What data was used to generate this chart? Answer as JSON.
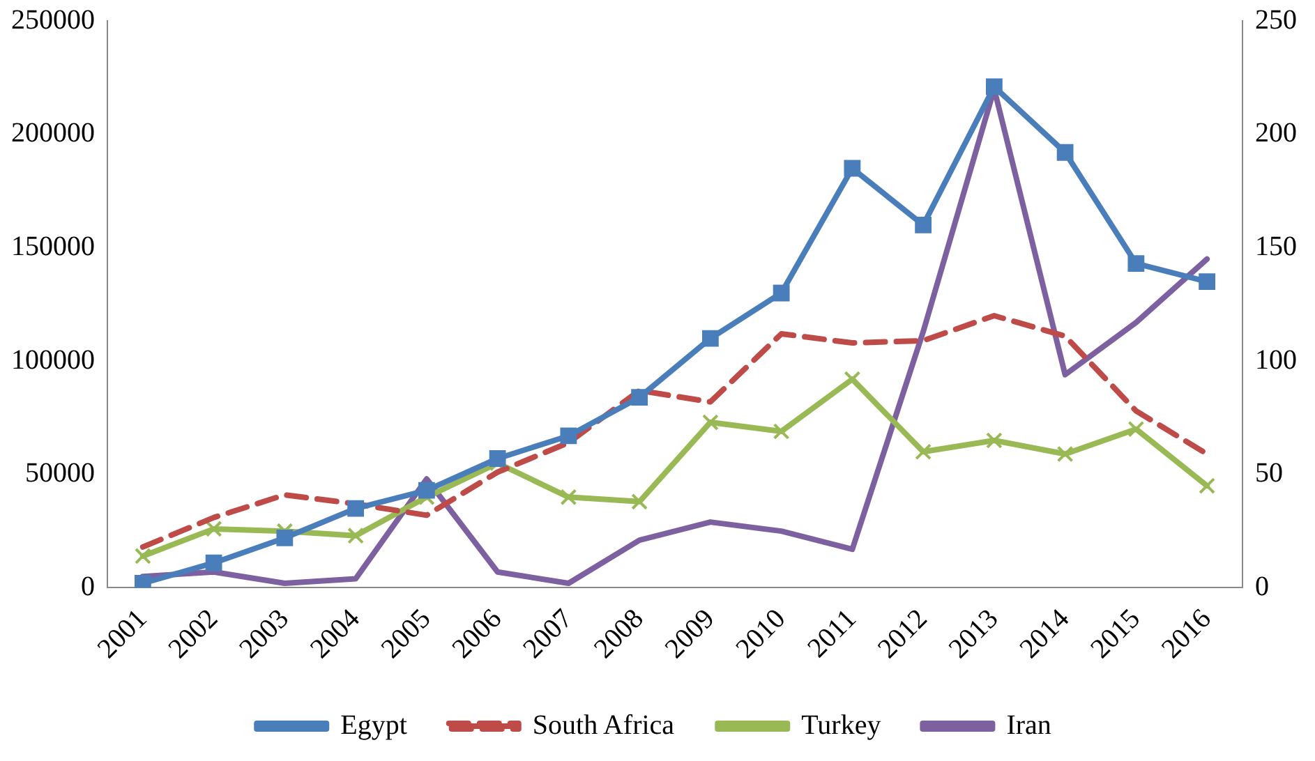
{
  "chart_data": {
    "type": "line",
    "categories": [
      "2001",
      "2002",
      "2003",
      "2004",
      "2005",
      "2006",
      "2007",
      "2008",
      "2009",
      "2010",
      "2011",
      "2012",
      "2013",
      "2014",
      "2015",
      "2016"
    ],
    "series": [
      {
        "name": "Egypt",
        "color": "#4a7ebb",
        "marker": "square",
        "line_style": "solid",
        "values": [
          2000,
          11000,
          22000,
          35000,
          43000,
          57000,
          67000,
          84000,
          110000,
          130000,
          185000,
          160000,
          221000,
          192000,
          143000,
          135000
        ]
      },
      {
        "name": "South Africa",
        "color": "#be4b48",
        "marker": "none",
        "line_style": "dashed",
        "values": [
          18000,
          31000,
          41000,
          37000,
          32000,
          51000,
          64000,
          87000,
          82000,
          112000,
          108000,
          109000,
          120000,
          111000,
          78000,
          59000
        ]
      },
      {
        "name": "Turkey",
        "color": "#98b954",
        "marker": "cross",
        "line_style": "solid",
        "values": [
          14000,
          26000,
          25000,
          23000,
          40000,
          55000,
          40000,
          38000,
          73000,
          69000,
          92000,
          60000,
          65000,
          59000,
          70000,
          45000
        ]
      },
      {
        "name": "Iran",
        "color": "#7d60a0",
        "marker": "none",
        "line_style": "solid",
        "axis": "y2",
        "values": [
          5,
          7,
          2,
          4,
          48,
          7,
          2,
          21,
          29,
          25,
          17,
          113,
          220,
          94,
          117,
          145
        ]
      }
    ],
    "ylim": [
      0,
      250000
    ],
    "yticks": [
      0,
      50000,
      100000,
      150000,
      200000,
      250000
    ],
    "y2lim": [
      0,
      250
    ],
    "y2ticks": [
      0,
      50,
      100,
      150,
      200,
      250
    ],
    "grid": false,
    "legend": "bottom"
  }
}
